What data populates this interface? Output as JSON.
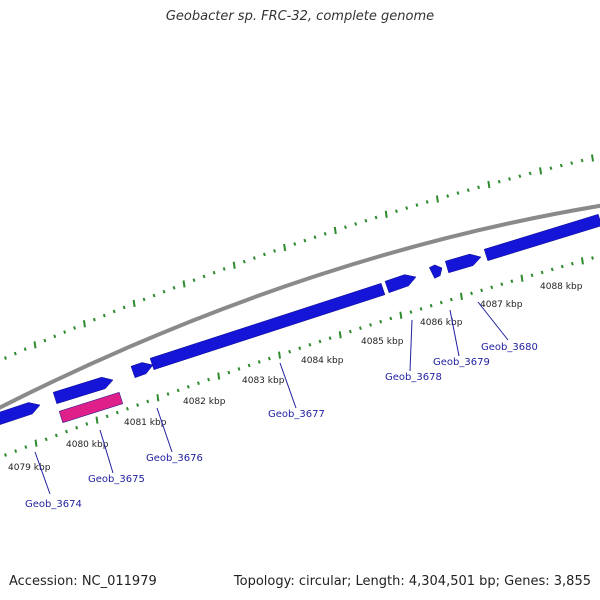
{
  "title": "Geobacter sp. FRC-32, complete genome",
  "footer": {
    "accession": "Accession: NC_011979",
    "summary": "Topology: circular; Length: 4,304,501 bp; Genes: 3,855"
  },
  "colors": {
    "backbone": "#8a8a8a",
    "gene_forward": "#1515d8",
    "gene_reverse": "#e0208a",
    "ticks": "#2e8b2e",
    "gene_label": "#1f1fa0",
    "kbp_label": "#222222"
  },
  "scale_labels": [
    "4079 kbp",
    "4080 kbp",
    "4081 kbp",
    "4082 kbp",
    "4083 kbp",
    "4084 kbp",
    "4085 kbp",
    "4086 kbp",
    "4087 kbp",
    "4088 kbp"
  ],
  "genes": [
    {
      "name": "Geob_3674",
      "type": "forward"
    },
    {
      "name": "Geob_3675",
      "type": "reverse"
    },
    {
      "name": "Geob_3676",
      "type": "forward"
    },
    {
      "name": "Geob_3677",
      "type": "forward"
    },
    {
      "name": "Geob_3678",
      "type": "forward"
    },
    {
      "name": "Geob_3679",
      "type": "forward"
    },
    {
      "name": "Geob_3680",
      "type": "forward"
    }
  ]
}
